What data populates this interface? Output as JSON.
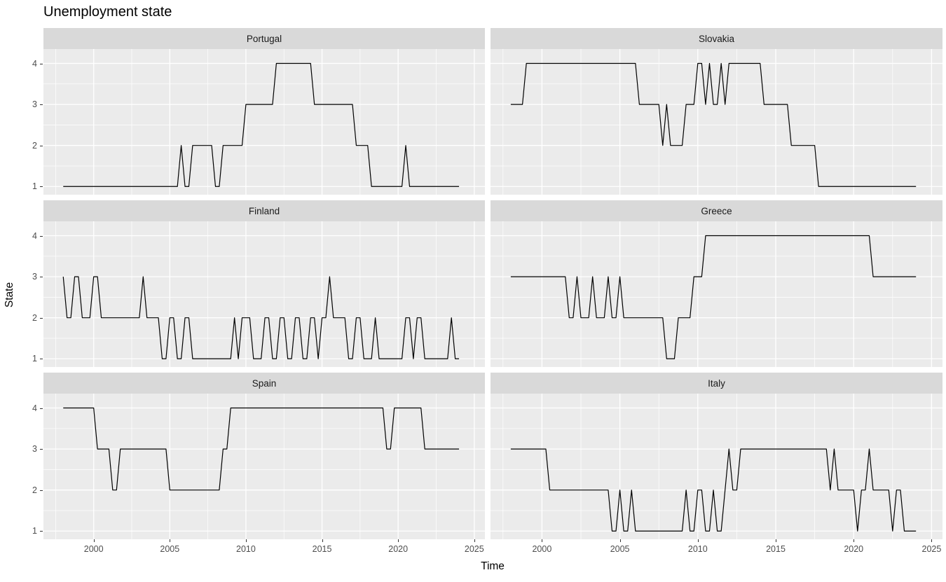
{
  "figure": {
    "title": "Unemployment state"
  },
  "style": {
    "panel_bg": "#ebebeb",
    "strip_bg": "#d9d9d9",
    "grid_color": "#ffffff",
    "line_color": "#000000",
    "axis_text_color": "#4d4d4d",
    "title_color": "#000000"
  },
  "chart_data": {
    "type": "line",
    "title": "Unemployment state",
    "xlabel": "Time",
    "ylabel": "State",
    "grid": "on",
    "legend": "none",
    "x_start": 1998.0,
    "x_step": 0.25,
    "xlim": [
      1996.7,
      2025.7
    ],
    "ylim": [
      0.8,
      4.35
    ],
    "x_ticks": [
      2000,
      2005,
      2010,
      2015,
      2020,
      2025
    ],
    "x_minor_ticks": [
      1997.5,
      2002.5,
      2007.5,
      2012.5,
      2017.5,
      2022.5
    ],
    "y_ticks": [
      4,
      3,
      2,
      1
    ],
    "y_minor_ticks": [
      1.5,
      2.5,
      3.5
    ],
    "facet_layout": [
      [
        "Portugal",
        "Slovakia"
      ],
      [
        "Finland",
        "Greece"
      ],
      [
        "Spain",
        "Italy"
      ]
    ],
    "series": [
      {
        "name": "Portugal",
        "values": [
          1,
          1,
          1,
          1,
          1,
          1,
          1,
          1,
          1,
          1,
          1,
          1,
          1,
          1,
          1,
          1,
          1,
          1,
          1,
          1,
          1,
          1,
          1,
          1,
          1,
          1,
          1,
          1,
          1,
          1,
          1,
          2,
          1,
          1,
          2,
          2,
          2,
          2,
          2,
          2,
          1,
          1,
          2,
          2,
          2,
          2,
          2,
          2,
          3,
          3,
          3,
          3,
          3,
          3,
          3,
          3,
          4,
          4,
          4,
          4,
          4,
          4,
          4,
          4,
          4,
          4,
          3,
          3,
          3,
          3,
          3,
          3,
          3,
          3,
          3,
          3,
          3,
          2,
          2,
          2,
          2,
          1,
          1,
          1,
          1,
          1,
          1,
          1,
          1,
          1,
          2,
          1,
          1,
          1,
          1,
          1,
          1,
          1,
          1,
          1,
          1,
          1,
          1,
          1,
          1
        ]
      },
      {
        "name": "Slovakia",
        "values": [
          3,
          3,
          3,
          3,
          4,
          4,
          4,
          4,
          4,
          4,
          4,
          4,
          4,
          4,
          4,
          4,
          4,
          4,
          4,
          4,
          4,
          4,
          4,
          4,
          4,
          4,
          4,
          4,
          4,
          4,
          4,
          4,
          4,
          3,
          3,
          3,
          3,
          3,
          3,
          2,
          3,
          2,
          2,
          2,
          2,
          3,
          3,
          3,
          4,
          4,
          3,
          4,
          3,
          3,
          4,
          3,
          4,
          4,
          4,
          4,
          4,
          4,
          4,
          4,
          4,
          3,
          3,
          3,
          3,
          3,
          3,
          3,
          2,
          2,
          2,
          2,
          2,
          2,
          2,
          1,
          1,
          1,
          1,
          1,
          1,
          1,
          1,
          1,
          1,
          1,
          1,
          1,
          1,
          1,
          1,
          1,
          1,
          1,
          1,
          1,
          1,
          1,
          1,
          1,
          1
        ]
      },
      {
        "name": "Finland",
        "values": [
          3,
          2,
          2,
          3,
          3,
          2,
          2,
          2,
          3,
          3,
          2,
          2,
          2,
          2,
          2,
          2,
          2,
          2,
          2,
          2,
          2,
          3,
          2,
          2,
          2,
          2,
          1,
          1,
          2,
          2,
          1,
          1,
          2,
          2,
          1,
          1,
          1,
          1,
          1,
          1,
          1,
          1,
          1,
          1,
          1,
          2,
          1,
          2,
          2,
          2,
          1,
          1,
          1,
          2,
          2,
          1,
          1,
          2,
          2,
          1,
          1,
          2,
          2,
          1,
          1,
          2,
          2,
          1,
          2,
          2,
          3,
          2,
          2,
          2,
          2,
          1,
          1,
          2,
          2,
          1,
          1,
          1,
          2,
          1,
          1,
          1,
          1,
          1,
          1,
          1,
          2,
          2,
          1,
          2,
          2,
          1,
          1,
          1,
          1,
          1,
          1,
          1,
          2,
          1,
          1
        ]
      },
      {
        "name": "Greece",
        "values": [
          3,
          3,
          3,
          3,
          3,
          3,
          3,
          3,
          3,
          3,
          3,
          3,
          3,
          3,
          3,
          2,
          2,
          3,
          2,
          2,
          2,
          3,
          2,
          2,
          2,
          3,
          2,
          2,
          3,
          2,
          2,
          2,
          2,
          2,
          2,
          2,
          2,
          2,
          2,
          2,
          1,
          1,
          1,
          2,
          2,
          2,
          2,
          3,
          3,
          3,
          4,
          4,
          4,
          4,
          4,
          4,
          4,
          4,
          4,
          4,
          4,
          4,
          4,
          4,
          4,
          4,
          4,
          4,
          4,
          4,
          4,
          4,
          4,
          4,
          4,
          4,
          4,
          4,
          4,
          4,
          4,
          4,
          4,
          4,
          4,
          4,
          4,
          4,
          4,
          4,
          4,
          4,
          4,
          3,
          3,
          3,
          3,
          3,
          3,
          3,
          3,
          3,
          3,
          3,
          3
        ]
      },
      {
        "name": "Spain",
        "values": [
          4,
          4,
          4,
          4,
          4,
          4,
          4,
          4,
          4,
          3,
          3,
          3,
          3,
          2,
          2,
          3,
          3,
          3,
          3,
          3,
          3,
          3,
          3,
          3,
          3,
          3,
          3,
          3,
          2,
          2,
          2,
          2,
          2,
          2,
          2,
          2,
          2,
          2,
          2,
          2,
          2,
          2,
          3,
          3,
          4,
          4,
          4,
          4,
          4,
          4,
          4,
          4,
          4,
          4,
          4,
          4,
          4,
          4,
          4,
          4,
          4,
          4,
          4,
          4,
          4,
          4,
          4,
          4,
          4,
          4,
          4,
          4,
          4,
          4,
          4,
          4,
          4,
          4,
          4,
          4,
          4,
          4,
          4,
          4,
          4,
          3,
          3,
          4,
          4,
          4,
          4,
          4,
          4,
          4,
          4,
          3,
          3,
          3,
          3,
          3,
          3,
          3,
          3,
          3,
          3
        ]
      },
      {
        "name": "Italy",
        "values": [
          3,
          3,
          3,
          3,
          3,
          3,
          3,
          3,
          3,
          3,
          2,
          2,
          2,
          2,
          2,
          2,
          2,
          2,
          2,
          2,
          2,
          2,
          2,
          2,
          2,
          2,
          1,
          1,
          2,
          1,
          1,
          2,
          1,
          1,
          1,
          1,
          1,
          1,
          1,
          1,
          1,
          1,
          1,
          1,
          1,
          2,
          1,
          1,
          2,
          2,
          1,
          1,
          2,
          1,
          1,
          2,
          3,
          2,
          2,
          3,
          3,
          3,
          3,
          3,
          3,
          3,
          3,
          3,
          3,
          3,
          3,
          3,
          3,
          3,
          3,
          3,
          3,
          3,
          3,
          3,
          3,
          3,
          2,
          3,
          2,
          2,
          2,
          2,
          2,
          1,
          2,
          2,
          3,
          2,
          2,
          2,
          2,
          2,
          1,
          2,
          2,
          1,
          1,
          1,
          1
        ]
      }
    ]
  }
}
